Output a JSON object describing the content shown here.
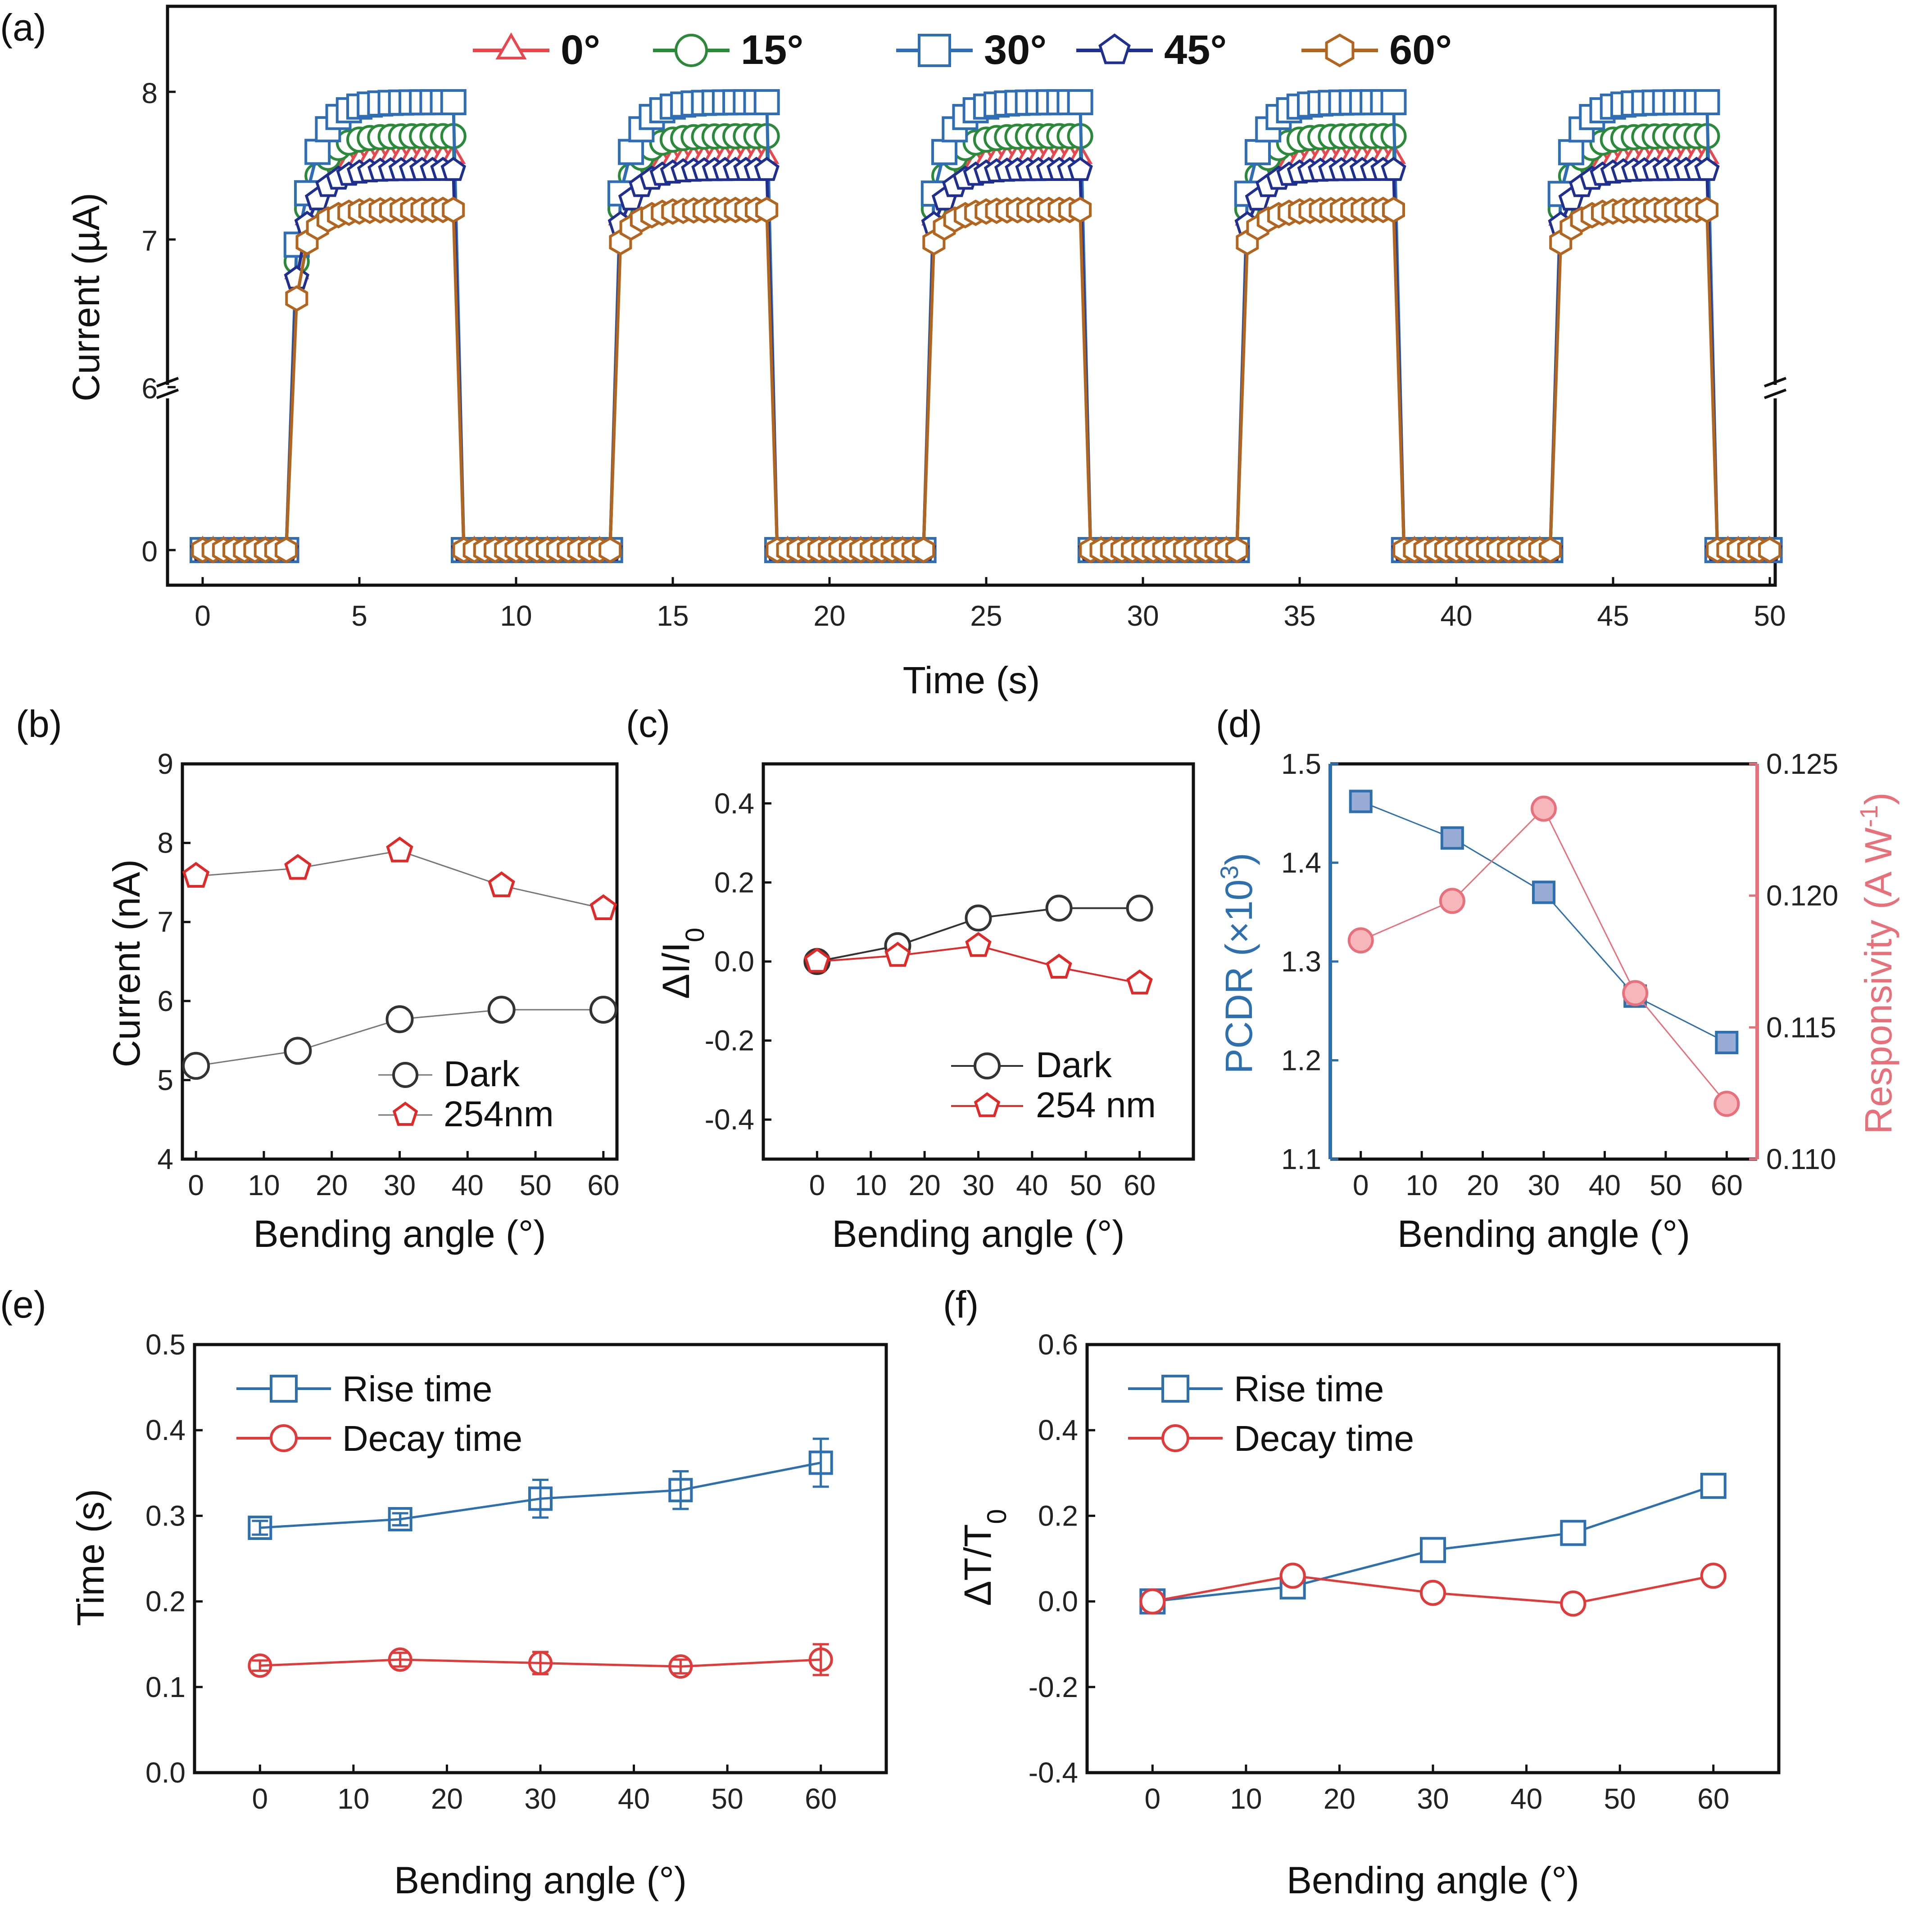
{
  "colors": {
    "c0": "#e8474e",
    "c15": "#2a8a3a",
    "c30": "#2f6db5",
    "c45": "#1f2f8f",
    "c60": "#b2651f",
    "dark": "#333333",
    "uv": "#e02a2a",
    "pcdr": "#2e6fad",
    "resp": "#e8707a",
    "rise": "#2e6fad",
    "decay": "#e03a3a"
  },
  "chart_data": [
    {
      "id": "a",
      "type": "line",
      "panel_label": "(a)",
      "xlabel": "Time (s)",
      "ylabel": "Current (µA)",
      "xlim": [
        0,
        50
      ],
      "xticks": [
        "0",
        "5",
        "10",
        "15",
        "20",
        "25",
        "30",
        "35",
        "40",
        "45",
        "50"
      ],
      "yticks_upper": [
        "6",
        "7",
        "8"
      ],
      "yticks_lower": [
        "0"
      ],
      "ylim_upper": [
        6,
        8.5
      ],
      "ylim_lower": [
        -0.5,
        2.5
      ],
      "axis_break": true,
      "legend": [
        "0°",
        "15°",
        "30°",
        "45°",
        "60°"
      ],
      "on_periods": [
        [
          3,
          8
        ],
        [
          13,
          18
        ],
        [
          23,
          28
        ],
        [
          33,
          38
        ],
        [
          43,
          48
        ]
      ],
      "dark_level": 0,
      "series": [
        {
          "name": "0°",
          "plateau": 7.56
        },
        {
          "name": "15°",
          "plateau": 7.7
        },
        {
          "name": "30°",
          "plateau": 7.93
        },
        {
          "name": "45°",
          "plateau": 7.47
        },
        {
          "name": "60°",
          "plateau": 7.2
        }
      ]
    },
    {
      "id": "b",
      "type": "line",
      "panel_label": "(b)",
      "xlabel": "Bending angle (°)",
      "ylabel": "Current (nA)",
      "xlim": [
        -2,
        62
      ],
      "ylim": [
        4,
        9
      ],
      "xticks": [
        "0",
        "10",
        "20",
        "30",
        "40",
        "50",
        "60"
      ],
      "yticks": [
        "4",
        "5",
        "6",
        "7",
        "8",
        "9"
      ],
      "x": [
        0,
        15,
        30,
        45,
        60
      ],
      "series": [
        {
          "name": "Dark",
          "values": [
            5.18,
            5.37,
            5.77,
            5.89,
            5.89
          ]
        },
        {
          "name": "254nm",
          "values": [
            7.58,
            7.68,
            7.9,
            7.46,
            7.17
          ]
        }
      ]
    },
    {
      "id": "c",
      "type": "line",
      "panel_label": "(c)",
      "xlabel": "Bending angle (°)",
      "ylabel": "ΔI/I",
      "ylabel_sub": "0",
      "xlim": [
        -10,
        70
      ],
      "ylim": [
        -0.5,
        0.5
      ],
      "xticks": [
        "0",
        "10",
        "20",
        "30",
        "40",
        "50",
        "60"
      ],
      "yticks": [
        "-0.4",
        "-0.2",
        "0.0",
        "0.2",
        "0.4"
      ],
      "x": [
        0,
        15,
        30,
        45,
        60
      ],
      "series": [
        {
          "name": "Dark",
          "values": [
            0.0,
            0.04,
            0.11,
            0.135,
            0.135
          ]
        },
        {
          "name": "254 nm",
          "values": [
            0.0,
            0.015,
            0.04,
            -0.015,
            -0.055
          ]
        }
      ]
    },
    {
      "id": "d",
      "type": "line",
      "panel_label": "(d)",
      "xlabel": "Bending angle (°)",
      "ylabel_left": "PCDR (×10",
      "ylabel_left_sup": "3",
      "ylabel_left_end": ")",
      "ylabel_right": "Responsivity (A W",
      "ylabel_right_sup": "-1",
      "ylabel_right_end": ")",
      "xlim": [
        -5,
        65
      ],
      "ylim_left": [
        1.1,
        1.5
      ],
      "ylim_right": [
        0.11,
        0.125
      ],
      "xticks": [
        "0",
        "10",
        "20",
        "30",
        "40",
        "50",
        "60"
      ],
      "yticks_left": [
        "1.1",
        "1.2",
        "1.3",
        "1.4",
        "1.5"
      ],
      "yticks_right": [
        "0.110",
        "0.115",
        "0.120",
        "0.125"
      ],
      "x": [
        0,
        15,
        30,
        45,
        60
      ],
      "series": [
        {
          "name": "PCDR",
          "axis": "left",
          "values": [
            1.462,
            1.425,
            1.37,
            1.265,
            1.218
          ]
        },
        {
          "name": "Responsivity",
          "axis": "right",
          "values": [
            0.1183,
            0.1198,
            0.1233,
            0.1163,
            0.1121
          ]
        }
      ]
    },
    {
      "id": "e",
      "type": "line",
      "panel_label": "(e)",
      "xlabel": "Bending angle (°)",
      "ylabel": "Time (s)",
      "xlim": [
        -7,
        67
      ],
      "ylim": [
        0,
        0.5
      ],
      "xticks": [
        "0",
        "10",
        "20",
        "30",
        "40",
        "50",
        "60"
      ],
      "yticks": [
        "0.0",
        "0.1",
        "0.2",
        "0.3",
        "0.4",
        "0.5"
      ],
      "x": [
        0,
        15,
        30,
        45,
        60
      ],
      "series": [
        {
          "name": "Rise time",
          "values": [
            0.286,
            0.296,
            0.32,
            0.33,
            0.362
          ],
          "errors": [
            0.008,
            0.007,
            0.022,
            0.022,
            0.028
          ]
        },
        {
          "name": "Decay time",
          "values": [
            0.125,
            0.132,
            0.128,
            0.124,
            0.132
          ],
          "errors": [
            0.006,
            0.008,
            0.013,
            0.008,
            0.018
          ]
        }
      ]
    },
    {
      "id": "f",
      "type": "line",
      "panel_label": "(f)",
      "xlabel": "Bending angle (°)",
      "ylabel": "ΔT/T",
      "ylabel_sub": "0",
      "xlim": [
        -7,
        67
      ],
      "ylim": [
        -0.4,
        0.6
      ],
      "xticks": [
        "0",
        "10",
        "20",
        "30",
        "40",
        "50",
        "60"
      ],
      "yticks": [
        "-0.4",
        "-0.2",
        "0.0",
        "0.2",
        "0.4",
        "0.6"
      ],
      "x": [
        0,
        15,
        30,
        45,
        60
      ],
      "series": [
        {
          "name": "Rise time",
          "values": [
            0.0,
            0.035,
            0.12,
            0.16,
            0.27
          ]
        },
        {
          "name": "Decay time",
          "values": [
            0.0,
            0.06,
            0.02,
            -0.005,
            0.06
          ]
        }
      ]
    }
  ]
}
